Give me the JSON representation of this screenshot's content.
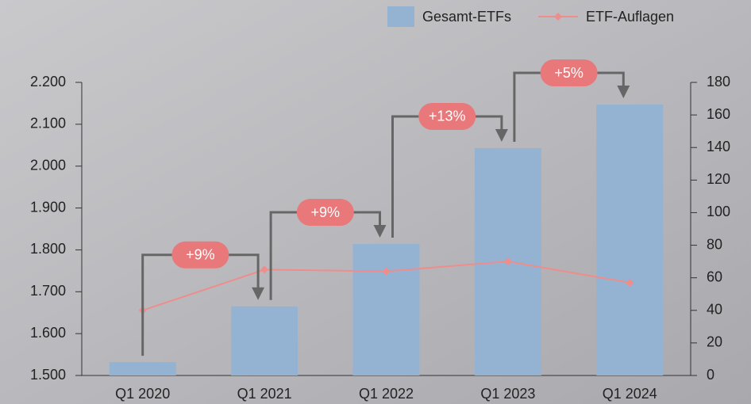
{
  "chart_data": {
    "type": "bar-line",
    "categories": [
      "Q1 2020",
      "Q1 2021",
      "Q1 2022",
      "Q1 2023",
      "Q1 2024"
    ],
    "series": [
      {
        "name": "Gesamt-ETFs",
        "type": "bar",
        "color": "#94b3d3",
        "values": [
          1532,
          1665,
          1814,
          2043,
          2147
        ]
      },
      {
        "name": "ETF-Auflagen",
        "type": "line",
        "axis": "y2",
        "color": "#ef8c8c",
        "values": [
          40,
          65,
          64,
          70,
          57
        ]
      }
    ],
    "annotations": [
      "+9%",
      "+9%",
      "+13%",
      "+5%"
    ],
    "ylim": [
      1500,
      2200
    ],
    "yticks": [
      {
        "value": 1500,
        "label": "1.500"
      },
      {
        "value": 1600,
        "label": "1.600"
      },
      {
        "value": 1700,
        "label": "1.700"
      },
      {
        "value": 1800,
        "label": "1.800"
      },
      {
        "value": 1900,
        "label": "1.900"
      },
      {
        "value": 2000,
        "label": "2.000"
      },
      {
        "value": 2100,
        "label": "2.100"
      },
      {
        "value": 2200,
        "label": "2.200"
      }
    ],
    "y2lim": [
      0,
      180
    ],
    "y2ticks": [
      0,
      20,
      40,
      60,
      80,
      100,
      120,
      140,
      160,
      180
    ],
    "legend": "top-right"
  }
}
